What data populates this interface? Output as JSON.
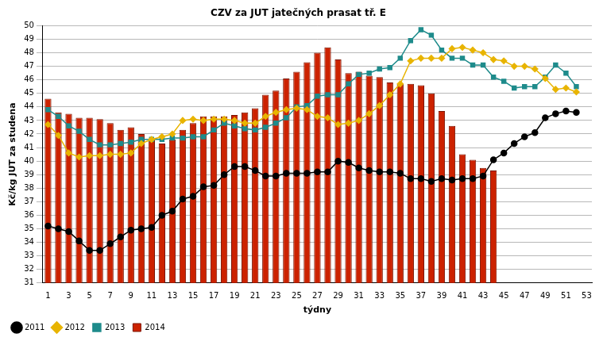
{
  "chart_data": {
    "type": "bar",
    "title": "CZV za JUT jatečných prasat tř. E",
    "x_label": "týdny",
    "y_label": "Kč/kg JUT za studena",
    "categories": [
      1,
      null,
      3,
      null,
      5,
      null,
      7,
      null,
      9,
      null,
      11,
      null,
      13,
      null,
      15,
      null,
      17,
      null,
      19,
      null,
      21,
      null,
      23,
      null,
      25,
      null,
      27,
      null,
      29,
      null,
      31,
      null,
      33,
      null,
      35,
      null,
      37,
      null,
      39,
      null,
      41,
      null,
      43,
      null,
      45,
      null,
      47,
      null,
      49,
      null,
      51,
      null,
      53
    ],
    "ylim": [
      31,
      50
    ],
    "yticks": [
      31,
      32,
      33,
      34,
      35,
      36,
      37,
      38,
      39,
      40,
      41,
      42,
      43,
      44,
      45,
      46,
      47,
      48,
      49,
      50
    ],
    "grid": true,
    "legend": "bottom-left",
    "series": [
      {
        "name": "2014",
        "type": "bar",
        "color": "#cc2200",
        "values": [
          44.6,
          43.6,
          43.5,
          43.2,
          43.2,
          43.1,
          42.8,
          42.3,
          42.5,
          42.0,
          41.6,
          41.3,
          41.6,
          42.3,
          42.8,
          43.3,
          43.3,
          43.3,
          43.4,
          43.6,
          43.9,
          44.9,
          45.2,
          46.1,
          46.6,
          47.3,
          48.0,
          48.4,
          47.5,
          46.5,
          46.6,
          46.3,
          46.2,
          45.8,
          45.7,
          45.7,
          45.6,
          45.0,
          43.7,
          42.6,
          40.5,
          40.1,
          39.5,
          39.3,
          null,
          null,
          null,
          null,
          null,
          null,
          null,
          null,
          null
        ]
      },
      {
        "name": "2011",
        "type": "line",
        "color": "#000000",
        "marker": "circle",
        "line_style": "solid",
        "values": [
          35.2,
          35.0,
          34.8,
          34.1,
          33.4,
          33.4,
          33.9,
          34.4,
          34.9,
          35.0,
          35.1,
          36.0,
          36.3,
          37.2,
          37.4,
          38.1,
          38.2,
          39.0,
          39.6,
          39.6,
          39.3,
          38.9,
          38.9,
          39.1,
          39.1,
          39.1,
          39.2,
          39.2,
          40.0,
          39.9,
          39.5,
          39.3,
          39.2,
          39.2,
          39.1,
          38.7,
          38.7,
          38.5,
          38.7,
          38.6,
          38.7,
          38.7,
          38.9,
          40.1,
          40.6,
          41.3,
          41.8,
          42.1,
          43.2,
          43.5,
          43.7,
          43.6,
          null
        ]
      },
      {
        "name": "2012",
        "type": "line",
        "color": "#e8b400",
        "marker": "diamond",
        "line_style": "solid",
        "values": [
          42.7,
          41.9,
          40.6,
          40.3,
          40.4,
          40.4,
          40.5,
          40.5,
          40.6,
          41.3,
          41.6,
          41.8,
          42.0,
          43.0,
          43.1,
          43.0,
          43.1,
          43.1,
          43.0,
          42.8,
          42.8,
          43.3,
          43.6,
          43.8,
          43.9,
          43.8,
          43.3,
          43.2,
          42.7,
          42.8,
          43.0,
          43.5,
          44.1,
          44.9,
          45.7,
          47.4,
          47.6,
          47.6,
          47.6,
          48.3,
          48.4,
          48.2,
          48.0,
          47.5,
          47.4,
          47.0,
          47.0,
          46.8,
          46.1,
          45.3,
          45.4,
          45.1,
          null
        ]
      },
      {
        "name": "2013",
        "type": "line",
        "color": "#1e8b8b",
        "marker": "square",
        "line_style": "solid",
        "values": [
          43.8,
          43.3,
          42.6,
          42.2,
          41.6,
          41.2,
          41.2,
          41.3,
          41.4,
          41.6,
          41.6,
          41.6,
          41.7,
          41.7,
          41.8,
          41.8,
          42.3,
          42.8,
          42.6,
          42.4,
          42.3,
          42.5,
          42.8,
          43.2,
          44.0,
          44.1,
          44.8,
          44.9,
          44.9,
          45.7,
          46.4,
          46.5,
          46.8,
          46.9,
          47.6,
          48.9,
          49.7,
          49.3,
          48.2,
          47.6,
          47.6,
          47.1,
          47.1,
          46.2,
          45.9,
          45.4,
          45.5,
          45.5,
          46.2,
          47.1,
          46.5,
          45.5,
          null
        ]
      }
    ]
  }
}
